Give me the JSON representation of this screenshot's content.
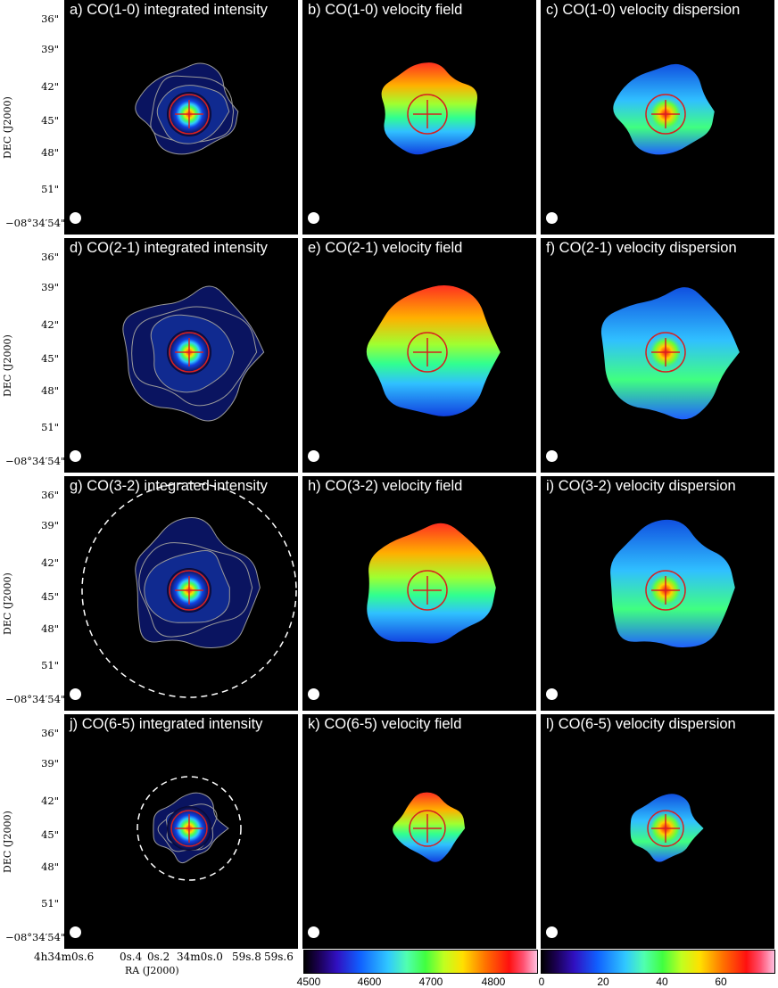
{
  "figure": {
    "panels": [
      {
        "label": "a) CO(1-0) integrated intensity",
        "kind": "intensity",
        "line": "CO(1-0)"
      },
      {
        "label": "b) CO(1-0) velocity field",
        "kind": "velocity",
        "line": "CO(1-0)"
      },
      {
        "label": "c) CO(1-0) velocity dispersion",
        "kind": "dispersion",
        "line": "CO(1-0)"
      },
      {
        "label": "d) CO(2-1) integrated intensity",
        "kind": "intensity",
        "line": "CO(2-1)"
      },
      {
        "label": "e) CO(2-1) velocity field",
        "kind": "velocity",
        "line": "CO(2-1)"
      },
      {
        "label": "f) CO(2-1) velocity dispersion",
        "kind": "dispersion",
        "line": "CO(2-1)"
      },
      {
        "label": "g) CO(3-2) integrated intensity",
        "kind": "intensity",
        "line": "CO(3-2)"
      },
      {
        "label": "h) CO(3-2) velocity field",
        "kind": "velocity",
        "line": "CO(3-2)"
      },
      {
        "label": "i) CO(3-2) velocity dispersion",
        "kind": "dispersion",
        "line": "CO(3-2)"
      },
      {
        "label": "j) CO(6-5) integrated intensity",
        "kind": "intensity",
        "line": "CO(6-5)"
      },
      {
        "label": "k) CO(6-5) velocity field",
        "kind": "velocity",
        "line": "CO(6-5)"
      },
      {
        "label": "l) CO(6-5) velocity dispersion",
        "kind": "dispersion",
        "line": "CO(6-5)"
      }
    ],
    "dec_ticks": [
      "36\"",
      "39\"",
      "42\"",
      "45\"",
      "48\"",
      "51\"",
      "−08°34′54\""
    ],
    "dec_axis_label": "DEC (J2000)",
    "ra_ticks": [
      "4h34m0s.6",
      "0s.4",
      "0s.2",
      "34m0s.0",
      "59s.8",
      "59s.6"
    ],
    "ra_axis_label": "RA (J2000)",
    "velocity_colorbar": {
      "ticks": [
        "4500",
        "4600",
        "4700",
        "4800"
      ]
    },
    "dispersion_colorbar": {
      "ticks": [
        "0",
        "20",
        "40",
        "60"
      ]
    },
    "colors": {
      "panel_background": "#000000",
      "marker": "#d62020",
      "contour": "#9a9a9a",
      "beam": "#ffffff"
    }
  }
}
